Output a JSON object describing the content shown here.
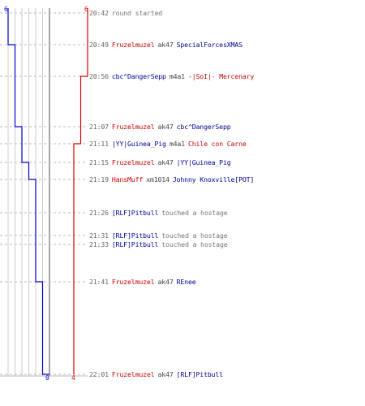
{
  "timeline": {
    "colors": {
      "team_a": "#0000cc",
      "team_b": "#dd0000",
      "grid": "#cccccc",
      "center": "#888888",
      "dash": "#bbbbbb"
    },
    "score_a_start": "6",
    "score_b_start": "6",
    "score_a_end": "0",
    "score_b_end": "4",
    "team_a_alive": [
      6,
      5,
      4,
      3,
      2,
      1,
      0
    ],
    "team_b_alive": [
      6,
      5,
      4
    ],
    "events": [
      {
        "time": "20:42",
        "type": "text",
        "text": "round started"
      },
      {
        "time": "20:49",
        "type": "kill",
        "killer": "Fruzelmuzel",
        "killer_team": "red",
        "weapon": "ak47",
        "victim": "SpecialForcesXMAS",
        "victim_team": "blue"
      },
      {
        "time": "20:56",
        "type": "kill",
        "killer": "cbc^DangerSepp",
        "killer_team": "blue",
        "weapon": "m4a1",
        "victim": "-|SoI|- Mercenary",
        "victim_team": "red"
      },
      {
        "time": "21:07",
        "type": "kill",
        "killer": "Fruzelmuzel",
        "killer_team": "red",
        "weapon": "ak47",
        "victim": "cbc^DangerSepp",
        "victim_team": "blue"
      },
      {
        "time": "21:11",
        "type": "kill",
        "killer": "|YY|Guinea_Pig",
        "killer_team": "blue",
        "weapon": "m4a1",
        "victim": "Chile con Carne",
        "victim_team": "red"
      },
      {
        "time": "21:15",
        "type": "kill",
        "killer": "Fruzelmuzel",
        "killer_team": "red",
        "weapon": "ak47",
        "victim": "|YY|Guinea_Pig",
        "victim_team": "blue"
      },
      {
        "time": "21:19",
        "type": "kill",
        "killer": "HansMuff",
        "killer_team": "red",
        "weapon": "xm1014",
        "victim": "Johnny Knoxville[POT]",
        "victim_team": "blue"
      },
      {
        "time": "21:26",
        "type": "hostage",
        "player": "[RLF]Pitbull",
        "player_team": "blue",
        "text": "touched a hostage"
      },
      {
        "time": "21:31",
        "type": "hostage",
        "player": "[RLF]Pitbull",
        "player_team": "blue",
        "text": "touched a hostage"
      },
      {
        "time": "21:33",
        "type": "hostage",
        "player": "[RLF]Pitbull",
        "player_team": "blue",
        "text": "touched a hostage"
      },
      {
        "time": "21:41",
        "type": "kill",
        "killer": "Fruzelmuzel",
        "killer_team": "red",
        "weapon": "ak47",
        "victim": "REnee",
        "victim_team": "blue"
      },
      {
        "time": "22:01",
        "type": "kill",
        "killer": "Fruzelmuzel",
        "killer_team": "red",
        "weapon": "ak47",
        "victim": "[RLF]Pitbull",
        "victim_team": "blue"
      }
    ]
  }
}
